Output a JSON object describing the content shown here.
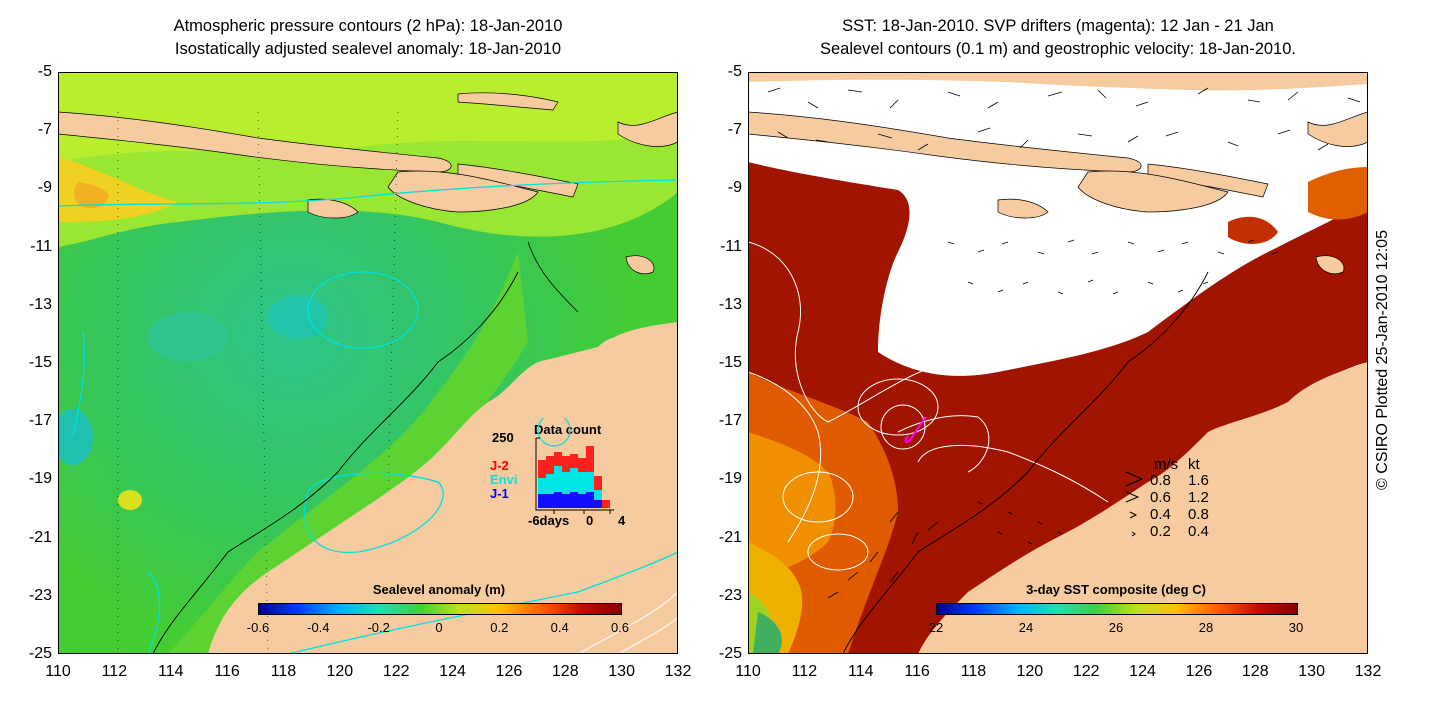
{
  "left_panel": {
    "title_line1": "Atmospheric pressure contours (2 hPa): 18-Jan-2010",
    "title_line2": "Isostatically adjusted sealevel anomaly: 18-Jan-2010",
    "colorbar": {
      "label": "Sealevel anomaly (m)",
      "ticks": [
        "-0.6",
        "-0.4",
        "-0.2",
        "0",
        "0.2",
        "0.4",
        "0.6"
      ],
      "range": [
        -0.6,
        0.6
      ]
    },
    "data_count_inset": {
      "title": "Data count",
      "ymax_label": "250",
      "series": [
        {
          "name": "J-2",
          "color": "#ff0000"
        },
        {
          "name": "Envi",
          "color": "#00e5e5"
        },
        {
          "name": "J-1",
          "color": "#0000ff"
        }
      ],
      "x_tick_left": "-6days",
      "x_tick_mid": "0",
      "x_tick_right": "4"
    }
  },
  "right_panel": {
    "title_line1": "SST: 18-Jan-2010. SVP drifters (magenta): 12 Jan - 21 Jan",
    "title_line2": "Sealevel contours (0.1 m) and geostrophic velocity: 18-Jan-2010.",
    "colorbar": {
      "label": "3-day SST composite (deg C)",
      "ticks": [
        "22",
        "24",
        "26",
        "28",
        "30"
      ],
      "range": [
        22,
        30
      ]
    },
    "velocity_legend": {
      "header_ms": "m/s",
      "header_kt": "kt",
      "rows": [
        {
          "ms": "0.8",
          "kt": "1.6"
        },
        {
          "ms": "0.6",
          "kt": "1.2"
        },
        {
          "ms": "0.4",
          "kt": "0.8"
        },
        {
          "ms": "0.2",
          "kt": "0.4"
        }
      ]
    }
  },
  "axes": {
    "y_ticks": [
      "-5",
      "-7",
      "-9",
      "-11",
      "-13",
      "-15",
      "-17",
      "-19",
      "-21",
      "-23",
      "-25"
    ],
    "x_ticks": [
      "110",
      "112",
      "114",
      "116",
      "118",
      "120",
      "122",
      "124",
      "126",
      "128",
      "130",
      "132"
    ]
  },
  "credit": "© CSIRO Plotted 25-Jan-2010 12:05",
  "colors": {
    "land": "#f7cba0",
    "cloud": "#ffffff",
    "warm_sst": "#a01400",
    "sla_base": "#33cc33"
  }
}
